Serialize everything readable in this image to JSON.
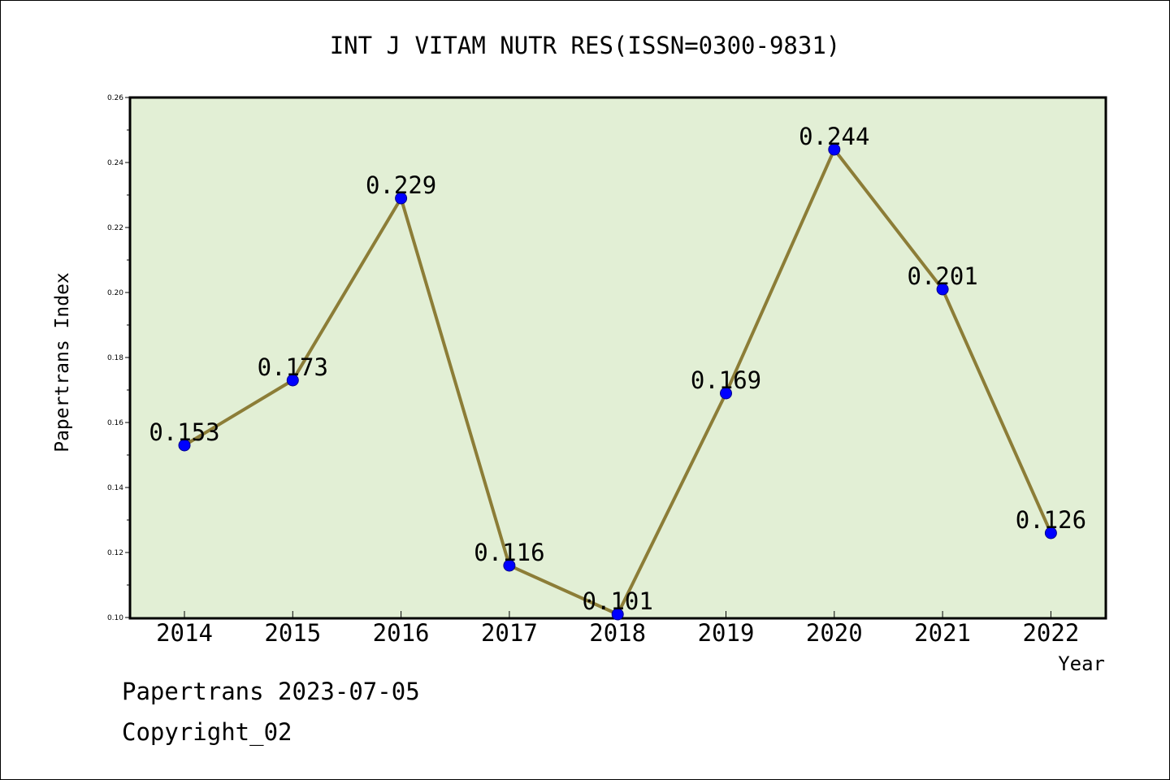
{
  "chart_data": {
    "type": "line",
    "title": "INT J VITAM NUTR RES(ISSN=0300-9831)",
    "xlabel": "Year",
    "ylabel": "Papertrans Index",
    "categories": [
      "2014",
      "2015",
      "2016",
      "2017",
      "2018",
      "2019",
      "2020",
      "2021",
      "2022"
    ],
    "series": [
      {
        "values": [
          0.153,
          0.173,
          0.229,
          0.116,
          0.101,
          0.169,
          0.244,
          0.201,
          0.126
        ],
        "labels": [
          "0.153",
          "0.173",
          "0.229",
          "0.116",
          "0.101",
          "0.169",
          "0.244",
          "0.201",
          "0.126"
        ]
      }
    ],
    "ylim": [
      0.1,
      0.26
    ],
    "yticks": [
      "0.10",
      "0.12",
      "0.14",
      "0.16",
      "0.18",
      "0.20",
      "0.22",
      "0.24",
      "0.26"
    ],
    "grid": false,
    "colors": {
      "plot_background": "#e2efd5",
      "line": "#8c7d37",
      "marker": "#0000ff"
    }
  },
  "footer": {
    "line1": "Papertrans 2023-07-05",
    "line2": "Copyright_02"
  }
}
